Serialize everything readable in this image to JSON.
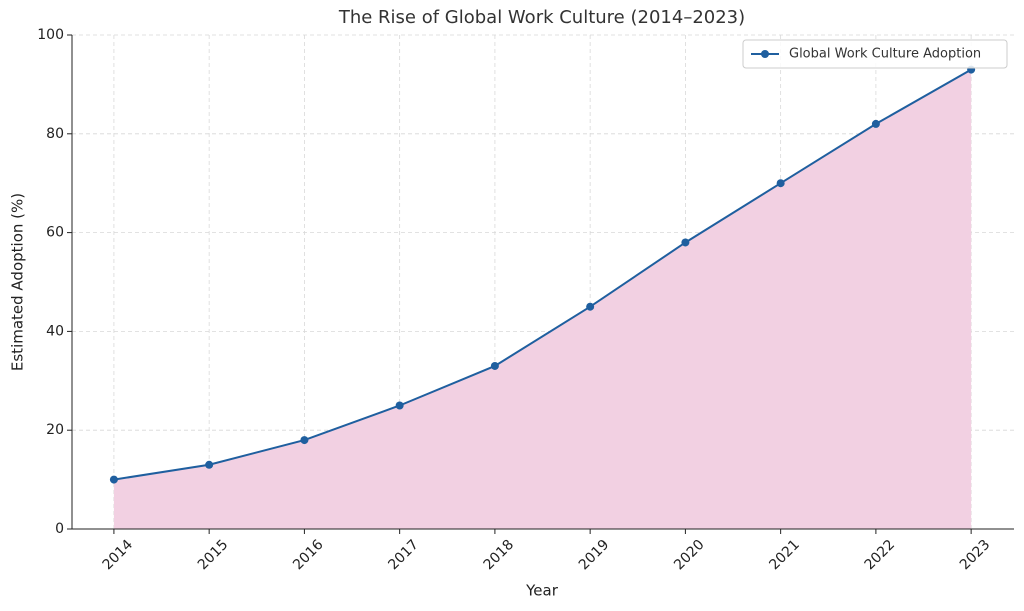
{
  "chart_data": {
    "type": "line",
    "title": "The Rise of Global Work Culture (2014–2023)",
    "x_label": "Year",
    "y_label": "Estimated Adoption (%)",
    "x": [
      2014,
      2015,
      2016,
      2017,
      2018,
      2019,
      2020,
      2021,
      2022,
      2023
    ],
    "series": [
      {
        "name": "Global Work Culture Adoption",
        "color": "#1f5f9f",
        "fill_color": "#f2d0e2",
        "values": [
          10,
          13,
          18,
          25,
          33,
          45,
          58,
          70,
          82,
          93
        ]
      }
    ],
    "xlim": [
      2013.56,
      2023.45
    ],
    "xticks": [
      2014,
      2015,
      2016,
      2017,
      2018,
      2019,
      2020,
      2021,
      2022,
      2023
    ],
    "ylim": [
      0,
      100
    ],
    "yticks": [
      0,
      20,
      40,
      60,
      80,
      100
    ],
    "grid": true,
    "legend": "upper right"
  }
}
